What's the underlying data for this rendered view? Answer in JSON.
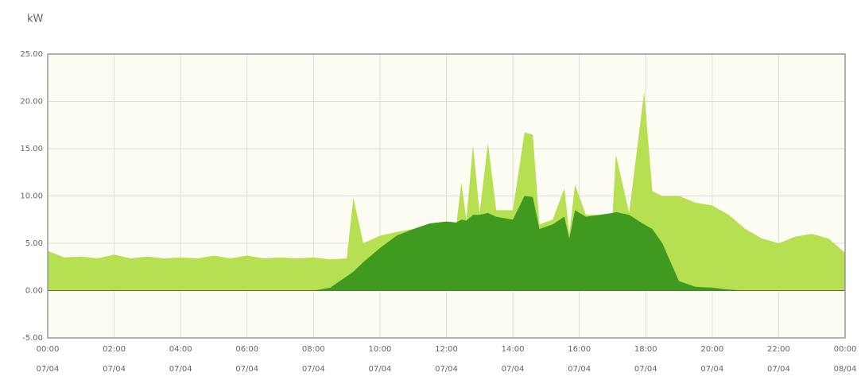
{
  "chart_data": {
    "type": "area",
    "y_label": "kW",
    "x": [
      0,
      0.5,
      1,
      1.5,
      2,
      2.5,
      3,
      3.5,
      4,
      4.5,
      5,
      5.5,
      6,
      6.5,
      7,
      7.5,
      8,
      8.5,
      9,
      9.2,
      9.5,
      10,
      10.5,
      11,
      11.5,
      12,
      12.3,
      12.45,
      12.6,
      12.8,
      13,
      13.25,
      13.5,
      14,
      14.35,
      14.6,
      14.8,
      15.2,
      15.55,
      15.7,
      15.87,
      16.2,
      17,
      17.1,
      17.5,
      17.95,
      18.2,
      18.5,
      19,
      19.5,
      20,
      20.5,
      21,
      21.5,
      22,
      22.5,
      23,
      23.5,
      24
    ],
    "series": [
      {
        "color": "#b6df52",
        "values": [
          4.2,
          3.5,
          3.6,
          3.4,
          3.8,
          3.4,
          3.6,
          3.4,
          3.5,
          3.4,
          3.7,
          3.4,
          3.7,
          3.4,
          3.5,
          3.4,
          3.5,
          3.3,
          3.4,
          9.8,
          5,
          5.8,
          6.2,
          6.5,
          7,
          7.2,
          7,
          11.4,
          7.5,
          15.4,
          8.2,
          15.6,
          8.5,
          8.5,
          16.7,
          16.5,
          7,
          7.5,
          10.8,
          6,
          11.2,
          8,
          8,
          14.4,
          8.2,
          21,
          10.5,
          10,
          10,
          9.3,
          9,
          8,
          6.5,
          5.5,
          5,
          5.7,
          6,
          5.5,
          4
        ]
      },
      {
        "color": "#3f9a1f",
        "values": [
          0,
          0,
          0,
          0,
          0,
          0,
          0,
          0,
          0,
          0,
          0,
          0,
          0,
          0,
          0,
          0,
          0,
          0.3,
          1.5,
          2,
          3,
          4.5,
          5.8,
          6.5,
          7.1,
          7.3,
          7.2,
          7.5,
          7.4,
          8,
          8,
          8.2,
          7.8,
          7.5,
          10,
          9.9,
          6.5,
          7,
          7.8,
          5.5,
          8.5,
          7.8,
          8.2,
          8.3,
          8,
          7,
          6.5,
          5,
          1,
          0.4,
          0.3,
          0.1,
          0,
          0,
          0,
          0,
          0,
          0,
          0
        ]
      }
    ],
    "xlim": [
      0,
      24
    ],
    "xticks": [
      {
        "value": 0,
        "label": "00:00"
      },
      {
        "value": 2,
        "label": "02:00"
      },
      {
        "value": 4,
        "label": "04:00"
      },
      {
        "value": 6,
        "label": "06:00"
      },
      {
        "value": 8,
        "label": "08:00"
      },
      {
        "value": 10,
        "label": "10:00"
      },
      {
        "value": 12,
        "label": "12:00"
      },
      {
        "value": 14,
        "label": "14:00"
      },
      {
        "value": 16,
        "label": "16:00"
      },
      {
        "value": 18,
        "label": "18:00"
      },
      {
        "value": 20,
        "label": "20:00"
      },
      {
        "value": 22,
        "label": "22:00"
      },
      {
        "value": 24,
        "label": "00:00"
      }
    ],
    "xtick_dates": [
      "07/04",
      "07/04",
      "07/04",
      "07/04",
      "07/04",
      "07/04",
      "07/04",
      "07/04",
      "07/04",
      "07/04",
      "07/04",
      "07/04",
      "08/04"
    ],
    "ylim": [
      -5,
      25
    ],
    "yticks": [
      {
        "value": -5,
        "label": "-5.00"
      },
      {
        "value": 0,
        "label": "0.00"
      },
      {
        "value": 5,
        "label": "5.00"
      },
      {
        "value": 10,
        "label": "10.00"
      },
      {
        "value": 15,
        "label": "15.00"
      },
      {
        "value": 20,
        "label": "20.00"
      },
      {
        "value": 25,
        "label": "25.00"
      }
    ],
    "grid": true
  }
}
